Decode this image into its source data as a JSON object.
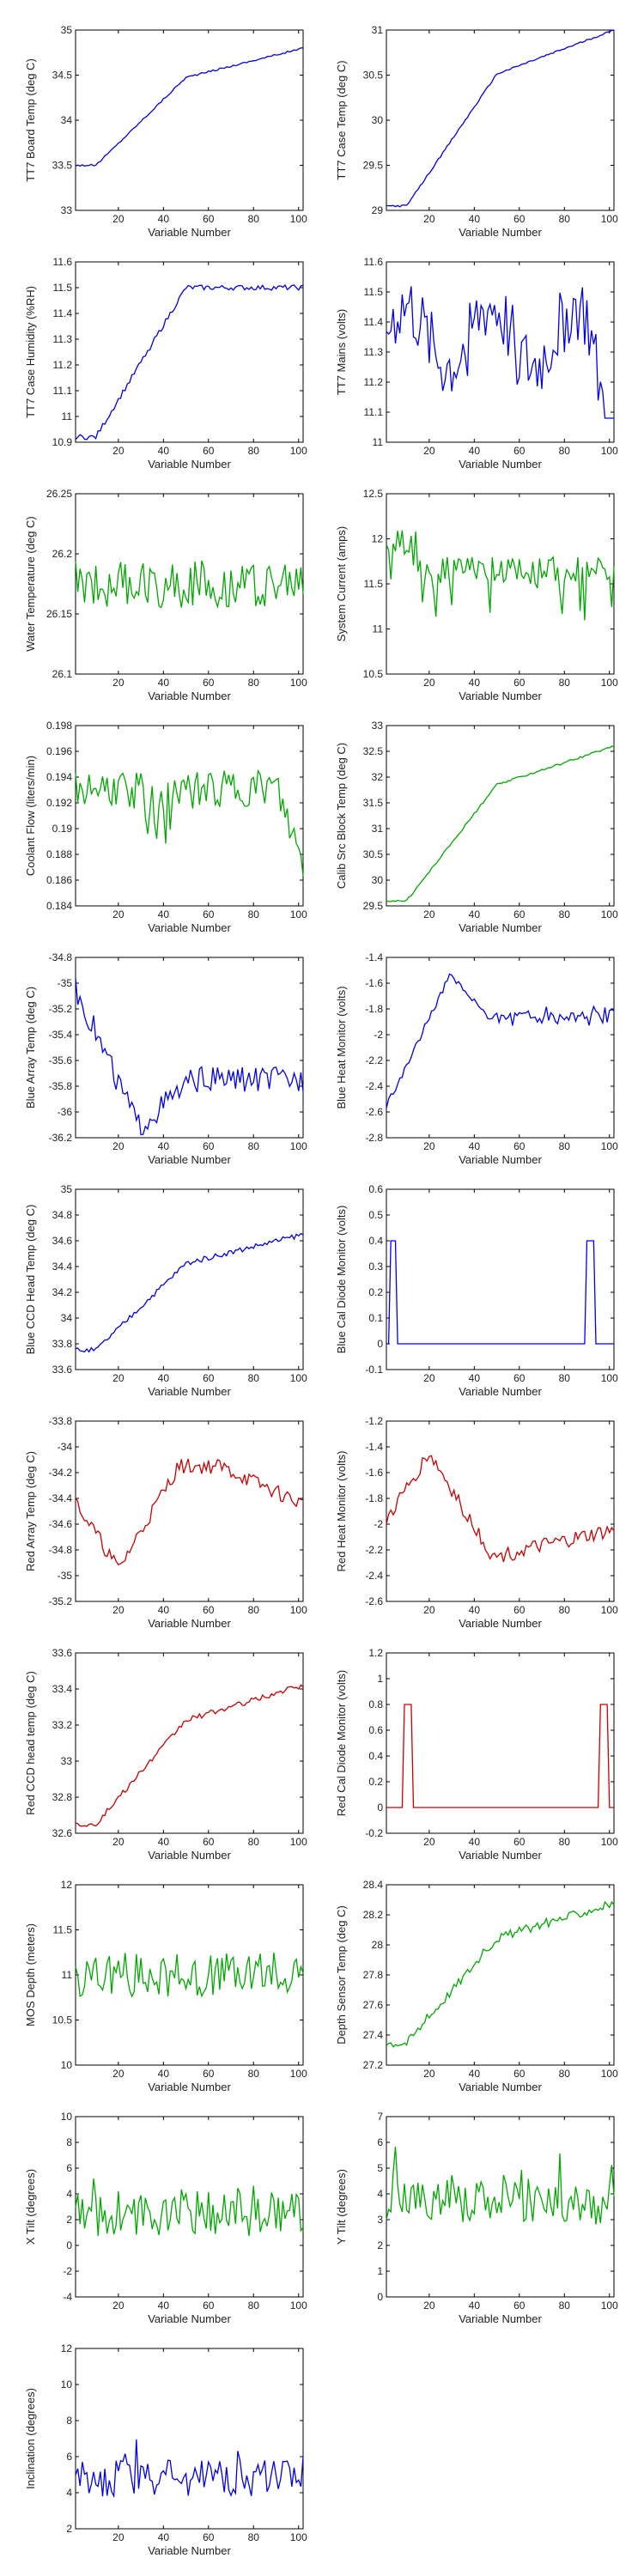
{
  "colors": {
    "blue": "#0000ee",
    "green": "#00a800",
    "red": "#cc0000",
    "axis": "#000000"
  },
  "x_axis": {
    "label": "Variable Number",
    "ticks": [
      20,
      40,
      60,
      80,
      100
    ],
    "range": [
      1,
      102
    ]
  },
  "chart_data": [
    {
      "type": "line",
      "ylabel": "TT7 Board Temp (deg C)",
      "xlabel": "Variable Number",
      "ylim": [
        33,
        35
      ],
      "yticks": [
        "33",
        "33.5",
        "34",
        "34.5",
        "35"
      ],
      "color": "blue",
      "shape": "step_rise",
      "params": [
        33.5,
        34.8,
        0.01
      ]
    },
    {
      "type": "line",
      "ylabel": "TT7 Case Temp (deg C)",
      "xlabel": "Variable Number",
      "ylim": [
        29,
        31
      ],
      "yticks": [
        "29",
        "29.5",
        "30",
        "30.5",
        "31"
      ],
      "color": "blue",
      "shape": "step_rise",
      "params": [
        29.05,
        31.0,
        0.01
      ]
    },
    {
      "type": "line",
      "ylabel": "TT7 Case Humidity (%RH)",
      "xlabel": "Variable Number",
      "ylim": [
        10.9,
        11.6
      ],
      "yticks": [
        "10.9",
        "11",
        "11.1",
        "11.2",
        "11.3",
        "11.4",
        "11.5",
        "11.6"
      ],
      "color": "blue",
      "shape": "rise_plateau",
      "params": [
        10.92,
        11.5,
        0.01
      ]
    },
    {
      "type": "line",
      "ylabel": "TT7 Mains (volts)",
      "xlabel": "Variable Number",
      "ylim": [
        11,
        11.6
      ],
      "yticks": [
        "11",
        "11.1",
        "11.2",
        "11.3",
        "11.4",
        "11.5",
        "11.6"
      ],
      "color": "blue",
      "shape": "mains",
      "params": [
        11.35,
        0.12,
        0.05
      ]
    },
    {
      "type": "line",
      "ylabel": "Water Temperature (deg C)",
      "xlabel": "Variable Number",
      "ylim": [
        26.1,
        26.25
      ],
      "yticks": [
        "26.1",
        "26.15",
        "26.2",
        "26.25"
      ],
      "color": "green",
      "shape": "noise",
      "params": [
        26.175,
        0.02,
        0.0
      ]
    },
    {
      "type": "line",
      "ylabel": "System Current (amps)",
      "xlabel": "Variable Number",
      "ylim": [
        10.5,
        12.5
      ],
      "yticks": [
        "10.5",
        "11",
        "11.5",
        "12",
        "12.5"
      ],
      "color": "green",
      "shape": "current",
      "params": [
        11.65,
        0.15,
        0.35
      ]
    },
    {
      "type": "line",
      "ylabel": "Coolant Flow (liters/min)",
      "xlabel": "Variable Number",
      "ylim": [
        0.184,
        0.198
      ],
      "yticks": [
        "0.184",
        "0.186",
        "0.188",
        "0.19",
        "0.192",
        "0.194",
        "0.196",
        "0.198"
      ],
      "color": "green",
      "shape": "coolant",
      "params": [
        0.193,
        0.0015,
        0.0
      ]
    },
    {
      "type": "line",
      "ylabel": "Calib Src Block Temp (deg C)",
      "xlabel": "Variable Number",
      "ylim": [
        29.5,
        33
      ],
      "yticks": [
        "29.5",
        "30",
        "30.5",
        "31",
        "31.5",
        "32",
        "32.5",
        "33"
      ],
      "color": "green",
      "shape": "step_rise",
      "params": [
        29.6,
        32.6,
        0.02
      ]
    },
    {
      "type": "line",
      "ylabel": "Blue Array Temp (deg C)",
      "xlabel": "Variable Number",
      "ylim": [
        -36.2,
        -34.8
      ],
      "yticks": [
        "-36.2",
        "-36",
        "-35.8",
        "-35.6",
        "-35.4",
        "-35.2",
        "-35",
        "-34.8"
      ],
      "color": "blue",
      "shape": "array_blue",
      "params": [
        -35.8,
        0.1,
        0.0
      ]
    },
    {
      "type": "line",
      "ylabel": "Blue Heat Monitor (volts)",
      "xlabel": "Variable Number",
      "ylim": [
        -2.8,
        -1.4
      ],
      "yticks": [
        "-2.8",
        "-2.6",
        "-2.4",
        "-2.2",
        "-2",
        "-1.8",
        "-1.6",
        "-1.4"
      ],
      "color": "blue",
      "shape": "heat_blue",
      "params": [
        -1.85,
        0.08,
        0.0
      ]
    },
    {
      "type": "line",
      "ylabel": "Blue CCD Head Temp (deg C)",
      "xlabel": "Variable Number",
      "ylim": [
        33.6,
        35
      ],
      "yticks": [
        "33.6",
        "33.8",
        "34",
        "34.2",
        "34.4",
        "34.6",
        "34.8",
        "35"
      ],
      "color": "blue",
      "shape": "step_rise",
      "params": [
        33.75,
        34.65,
        0.02
      ]
    },
    {
      "type": "line",
      "ylabel": "Blue Cal Diode Monitor (volts)",
      "xlabel": "Variable Number",
      "ylim": [
        -0.1,
        0.6
      ],
      "yticks": [
        "-0.1",
        "0",
        "0.1",
        "0.2",
        "0.3",
        "0.4",
        "0.5",
        "0.6"
      ],
      "color": "blue",
      "shape": "pulses",
      "params": [
        0.4,
        3,
        5,
        90,
        93
      ]
    },
    {
      "type": "line",
      "ylabel": "Red Array Temp (deg C)",
      "xlabel": "Variable Number",
      "ylim": [
        -35.2,
        -33.8
      ],
      "yticks": [
        "-35.2",
        "-35",
        "-34.8",
        "-34.6",
        "-34.4",
        "-34.2",
        "-34",
        "-33.8"
      ],
      "color": "red",
      "shape": "array_red",
      "params": [
        -34.3,
        0.06,
        0.0
      ]
    },
    {
      "type": "line",
      "ylabel": "Red Heat Monitor (volts)",
      "xlabel": "Variable Number",
      "ylim": [
        -2.6,
        -1.2
      ],
      "yticks": [
        "-2.6",
        "-2.4",
        "-2.2",
        "-2",
        "-1.8",
        "-1.6",
        "-1.4",
        "-1.2"
      ],
      "color": "red",
      "shape": "heat_red",
      "params": [
        -2.1,
        0.06,
        0.0
      ]
    },
    {
      "type": "line",
      "ylabel": "Red CCD head temp (deg C)",
      "xlabel": "Variable Number",
      "ylim": [
        32.6,
        33.6
      ],
      "yticks": [
        "32.6",
        "32.8",
        "33",
        "33.2",
        "33.4",
        "33.6"
      ],
      "color": "red",
      "shape": "step_rise",
      "params": [
        32.65,
        33.42,
        0.015
      ]
    },
    {
      "type": "line",
      "ylabel": "Red Cal Diode Monitor (volts)",
      "xlabel": "Variable Number",
      "ylim": [
        -0.2,
        1.2
      ],
      "yticks": [
        "-0.2",
        "0",
        "0.2",
        "0.4",
        "0.6",
        "0.8",
        "1",
        "1.2"
      ],
      "color": "red",
      "shape": "pulses",
      "params": [
        0.8,
        9,
        12,
        96,
        99
      ]
    },
    {
      "type": "line",
      "ylabel": "MOS Depth (meters)",
      "xlabel": "Variable Number",
      "ylim": [
        10,
        12
      ],
      "yticks": [
        "10",
        "10.5",
        "11",
        "11.5",
        "12"
      ],
      "color": "green",
      "shape": "noise",
      "params": [
        11.0,
        0.25,
        0.0
      ]
    },
    {
      "type": "line",
      "ylabel": "Depth Sensor Temp (deg C)",
      "xlabel": "Variable Number",
      "ylim": [
        27.2,
        28.4
      ],
      "yticks": [
        "27.2",
        "27.4",
        "27.6",
        "27.8",
        "28",
        "28.2",
        "28.4"
      ],
      "color": "green",
      "shape": "step_rise",
      "params": [
        27.35,
        28.28,
        0.03
      ]
    },
    {
      "type": "line",
      "ylabel": "X Tilt (degrees)",
      "xlabel": "Variable Number",
      "ylim": [
        -4,
        10
      ],
      "yticks": [
        "-4",
        "-2",
        "0",
        "2",
        "4",
        "6",
        "8",
        "10"
      ],
      "color": "green",
      "shape": "tilt",
      "params": [
        2.5,
        1.8,
        1.0
      ]
    },
    {
      "type": "line",
      "ylabel": "Y Tilt (degrees)",
      "xlabel": "Variable Number",
      "ylim": [
        0,
        7
      ],
      "yticks": [
        "0",
        "1",
        "2",
        "3",
        "4",
        "5",
        "6",
        "7"
      ],
      "color": "green",
      "shape": "tilt",
      "params": [
        3.7,
        0.9,
        0.5
      ]
    },
    {
      "type": "line",
      "ylabel": "Inclination (degrees)",
      "xlabel": "Variable Number",
      "ylim": [
        2,
        12
      ],
      "yticks": [
        "2",
        "4",
        "6",
        "8",
        "10",
        "12"
      ],
      "color": "blue",
      "shape": "tilt",
      "params": [
        4.8,
        1.0,
        0.8
      ]
    }
  ]
}
